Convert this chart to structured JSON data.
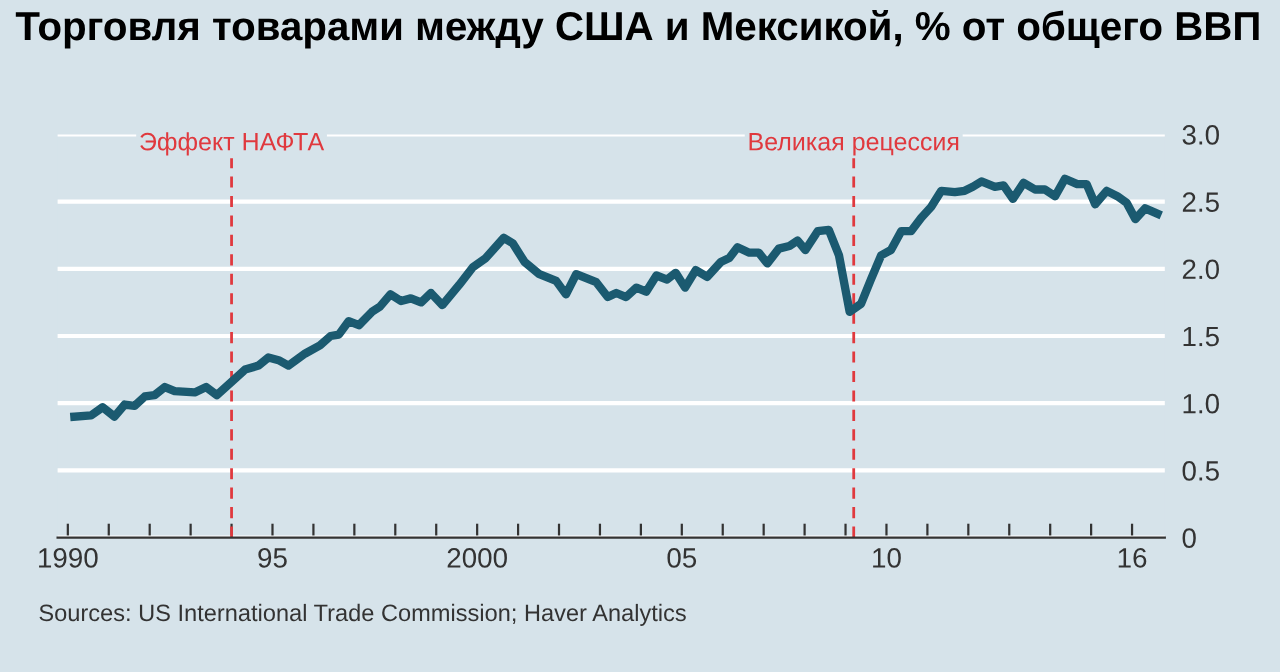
{
  "chart_data": {
    "type": "line",
    "title": "Торговля товарами между США и Мексикой, % от общего ВВП",
    "annotations": [
      "Sources: US International Trade Commission; Haver Analytics"
    ],
    "series": [
      {
        "color": "#1b5a70",
        "x": [
          1990.16,
          1990.57,
          1990.85,
          1991.14,
          1991.39,
          1991.63,
          1991.88,
          1992.12,
          1992.37,
          1992.61,
          1993.1,
          1993.38,
          1993.64,
          1994.04,
          1994.33,
          1994.66,
          1994.9,
          1995.15,
          1995.39,
          1995.8,
          1996.16,
          1996.42,
          1996.62,
          1996.86,
          1997.11,
          1997.43,
          1997.63,
          1997.88,
          1998.14,
          1998.38,
          1998.63,
          1998.87,
          1999.15,
          1999.56,
          1999.89,
          2000.21,
          2000.65,
          2000.87,
          2001.16,
          2001.52,
          2001.93,
          2002.17,
          2002.42,
          2002.91,
          2003.19,
          2003.4,
          2003.64,
          2003.89,
          2004.13,
          2004.38,
          2004.64,
          2004.85,
          2005.08,
          2005.34,
          2005.62,
          2005.95,
          2006.16,
          2006.36,
          2006.65,
          2006.88,
          2007.09,
          2007.37,
          2007.63,
          2007.83,
          2008.02,
          2008.32,
          2008.59,
          2008.84,
          2009.1,
          2009.38,
          2009.62,
          2009.87,
          2010.11,
          2010.36,
          2010.6,
          2010.85,
          2011.09,
          2011.34,
          2011.67,
          2011.91,
          2012.11,
          2012.32,
          2012.65,
          2012.86,
          2013.09,
          2013.35,
          2013.63,
          2013.87,
          2014.12,
          2014.36,
          2014.66,
          2014.89,
          2015.1,
          2015.38,
          2015.64,
          2015.87,
          2016.08,
          2016.32,
          2016.62
        ],
        "values": [
          0.9,
          0.91,
          0.97,
          0.9,
          0.99,
          0.98,
          1.05,
          1.06,
          1.12,
          1.09,
          1.08,
          1.12,
          1.06,
          1.17,
          1.25,
          1.28,
          1.34,
          1.32,
          1.28,
          1.37,
          1.43,
          1.5,
          1.51,
          1.61,
          1.58,
          1.68,
          1.72,
          1.81,
          1.76,
          1.78,
          1.75,
          1.82,
          1.73,
          1.88,
          2.01,
          2.08,
          2.23,
          2.19,
          2.05,
          1.96,
          1.91,
          1.81,
          1.96,
          1.9,
          1.79,
          1.82,
          1.79,
          1.86,
          1.83,
          1.95,
          1.92,
          1.97,
          1.86,
          1.99,
          1.94,
          2.05,
          2.08,
          2.16,
          2.12,
          2.12,
          2.04,
          2.15,
          2.17,
          2.21,
          2.14,
          2.28,
          2.29,
          2.1,
          1.68,
          1.74,
          1.92,
          2.1,
          2.14,
          2.28,
          2.28,
          2.38,
          2.46,
          2.58,
          2.57,
          2.58,
          2.61,
          2.65,
          2.61,
          2.62,
          2.52,
          2.64,
          2.59,
          2.59,
          2.54,
          2.67,
          2.63,
          2.63,
          2.48,
          2.58,
          2.54,
          2.49,
          2.37,
          2.45,
          2.41
        ]
      }
    ],
    "xlim": [
      1989.75,
      2016.8
    ],
    "xticks": [
      {
        "value": 1990,
        "label": "1990"
      },
      {
        "value": 1991,
        "label": null
      },
      {
        "value": 1992,
        "label": null
      },
      {
        "value": 1993,
        "label": null
      },
      {
        "value": 1994,
        "label": null
      },
      {
        "value": 1995,
        "label": "95"
      },
      {
        "value": 1996,
        "label": null
      },
      {
        "value": 1997,
        "label": null
      },
      {
        "value": 1998,
        "label": null
      },
      {
        "value": 1999,
        "label": null
      },
      {
        "value": 2000,
        "label": "2000"
      },
      {
        "value": 2001,
        "label": null
      },
      {
        "value": 2002,
        "label": null
      },
      {
        "value": 2003,
        "label": null
      },
      {
        "value": 2004,
        "label": null
      },
      {
        "value": 2005,
        "label": "05"
      },
      {
        "value": 2006,
        "label": null
      },
      {
        "value": 2007,
        "label": null
      },
      {
        "value": 2008,
        "label": null
      },
      {
        "value": 2009,
        "label": null
      },
      {
        "value": 2010,
        "label": "10"
      },
      {
        "value": 2011,
        "label": null
      },
      {
        "value": 2012,
        "label": null
      },
      {
        "value": 2013,
        "label": null
      },
      {
        "value": 2014,
        "label": null
      },
      {
        "value": 2015,
        "label": null
      },
      {
        "value": 2016,
        "label": "16"
      }
    ],
    "ylim": [
      0,
      3
    ],
    "yticks": [
      0,
      0.5,
      {
        "value": 1,
        "label": "1.0"
      },
      1.5,
      {
        "value": 2,
        "label": "2.0"
      },
      2.5,
      {
        "value": 3,
        "label": "3.0"
      }
    ],
    "grid": "y",
    "legend": false,
    "marker": "none",
    "line_style": "solid",
    "ref_lines": [
      {
        "axis": "x",
        "value": 1994.0,
        "label": "Эффект НАФТА",
        "color": "#e0393e",
        "line_style": "dashed"
      },
      {
        "axis": "x",
        "value": 2009.2,
        "label": "Великая рецессия",
        "color": "#e0393e",
        "line_style": "dashed"
      }
    ]
  }
}
